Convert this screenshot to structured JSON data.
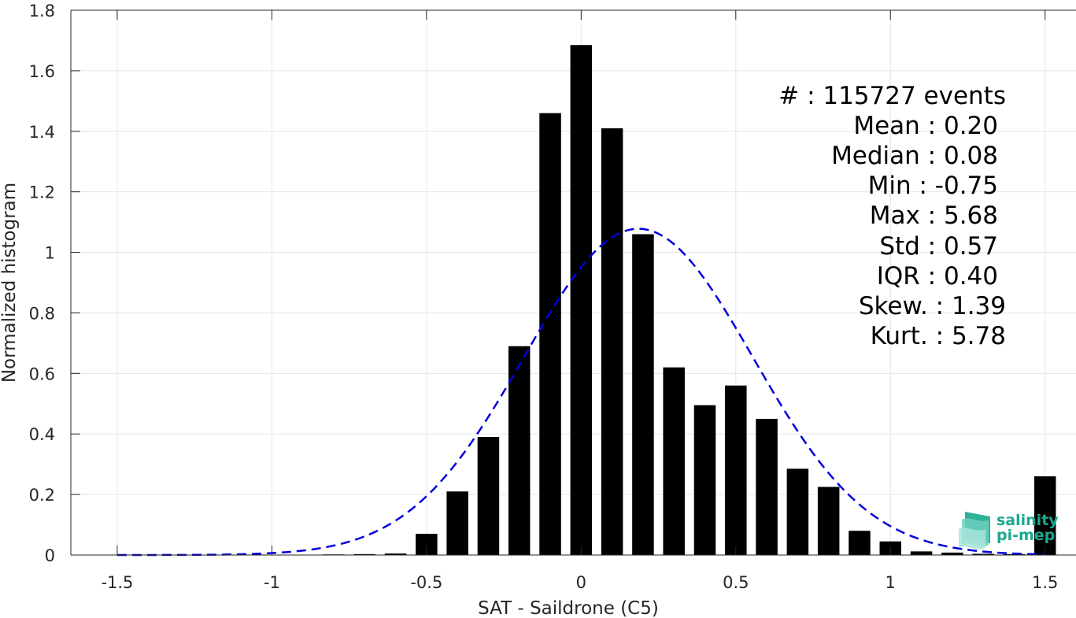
{
  "chart_data": {
    "type": "bar",
    "xlabel": "SAT - Saildrone (C5)",
    "ylabel": "Normalized histogram",
    "xlim": [
      -1.65,
      1.6
    ],
    "ylim": [
      0,
      1.8
    ],
    "xticks": [
      -1.5,
      -1,
      -0.5,
      0,
      0.5,
      1,
      1.5
    ],
    "xtick_labels": [
      "-1.5",
      "-1",
      "-0.5",
      "0",
      "0.5",
      "1",
      "1.5"
    ],
    "yticks": [
      0,
      0.2,
      0.4,
      0.6,
      0.8,
      1,
      1.2,
      1.4,
      1.6,
      1.8
    ],
    "ytick_labels": [
      "0",
      "0.2",
      "0.4",
      "0.6",
      "0.8",
      "1",
      "1.2",
      "1.4",
      "1.6",
      "1.8"
    ],
    "grid": true,
    "bar_color": "#000000",
    "bar_width": 0.07,
    "bars": [
      {
        "x": -0.8,
        "y": 0.002
      },
      {
        "x": -0.7,
        "y": 0.003
      },
      {
        "x": -0.6,
        "y": 0.005
      },
      {
        "x": -0.5,
        "y": 0.07
      },
      {
        "x": -0.4,
        "y": 0.21
      },
      {
        "x": -0.3,
        "y": 0.39
      },
      {
        "x": -0.2,
        "y": 0.69
      },
      {
        "x": -0.1,
        "y": 1.46
      },
      {
        "x": 0.0,
        "y": 1.685
      },
      {
        "x": 0.1,
        "y": 1.41
      },
      {
        "x": 0.2,
        "y": 1.06
      },
      {
        "x": 0.3,
        "y": 0.62
      },
      {
        "x": 0.4,
        "y": 0.495
      },
      {
        "x": 0.5,
        "y": 0.56
      },
      {
        "x": 0.6,
        "y": 0.45
      },
      {
        "x": 0.7,
        "y": 0.285
      },
      {
        "x": 0.8,
        "y": 0.225
      },
      {
        "x": 0.9,
        "y": 0.08
      },
      {
        "x": 1.0,
        "y": 0.045
      },
      {
        "x": 1.1,
        "y": 0.012
      },
      {
        "x": 1.2,
        "y": 0.008
      },
      {
        "x": 1.3,
        "y": 0.004
      },
      {
        "x": 1.4,
        "y": 0.003
      },
      {
        "x": 1.5,
        "y": 0.26
      }
    ],
    "fit_curve": {
      "style": "dashed",
      "color": "#0000dd",
      "mean": 0.185,
      "std": 0.37,
      "peak": 1.078,
      "x_range": [
        -1.5,
        1.5
      ]
    }
  },
  "stats": [
    {
      "label": "#  :",
      "value": "115727 events"
    },
    {
      "label": "Mean :",
      "value": "0.20"
    },
    {
      "label": "Median :",
      "value": "0.08"
    },
    {
      "label": "Min :",
      "value": "-0.75"
    },
    {
      "label": "Max :",
      "value": "5.68"
    },
    {
      "label": "Std :",
      "value": "0.57"
    },
    {
      "label": "IQR :",
      "value": "0.40"
    },
    {
      "label": "Skew. :",
      "value": "1.39"
    },
    {
      "label": "Kurt. :",
      "value": "5.78"
    }
  ],
  "stats_lines": [
    "#  : 115727 events",
    "Mean : 0.20",
    "Median : 0.08",
    "Min : -0.75",
    "Max : 5.68",
    "Std : 0.57",
    "IQR : 0.40",
    "Skew. : 1.39",
    "Kurt. : 5.78"
  ],
  "logo": {
    "line1": "salinity",
    "line2": "pi-mep",
    "color": "#1aa88f"
  }
}
